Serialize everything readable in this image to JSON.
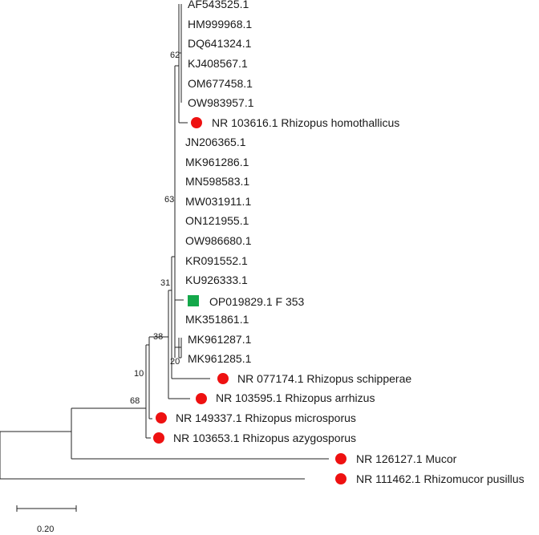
{
  "tree": {
    "taxa": [
      {
        "label": "AF543525.1",
        "marker": "none"
      },
      {
        "label": "HM999968.1",
        "marker": "none"
      },
      {
        "label": "DQ641324.1",
        "marker": "none"
      },
      {
        "label": "KJ408567.1",
        "marker": "none"
      },
      {
        "label": "OM677458.1",
        "marker": "none"
      },
      {
        "label": "OW983957.1",
        "marker": "none"
      },
      {
        "label": "NR 103616.1 Rhizopus homothallicus",
        "marker": "circle"
      },
      {
        "label": "JN206365.1",
        "marker": "none"
      },
      {
        "label": "MK961286.1",
        "marker": "none"
      },
      {
        "label": "MN598583.1",
        "marker": "none"
      },
      {
        "label": "MW031911.1",
        "marker": "none"
      },
      {
        "label": "ON121955.1",
        "marker": "none"
      },
      {
        "label": "OW986680.1",
        "marker": "none"
      },
      {
        "label": "KR091552.1",
        "marker": "none"
      },
      {
        "label": "KU926333.1",
        "marker": "none"
      },
      {
        "label": "OP019829.1 F 353",
        "marker": "square"
      },
      {
        "label": "MK351861.1",
        "marker": "none"
      },
      {
        "label": "MK961287.1",
        "marker": "none"
      },
      {
        "label": "MK961285.1",
        "marker": "none"
      },
      {
        "label": "NR 077174.1 Rhizopus schipperae",
        "marker": "circle"
      },
      {
        "label": "NR 103595.1 Rhizopus arrhizus",
        "marker": "circle"
      },
      {
        "label": "NR 149337.1 Rhizopus microsporus",
        "marker": "circle"
      },
      {
        "label": "NR 103653.1 Rhizopus azygosporus",
        "marker": "circle"
      },
      {
        "label": "NR 126127.1 Mucor",
        "marker": "circle"
      },
      {
        "label": "NR 111462.1 Rhizomucor pusillus",
        "marker": "circle"
      }
    ],
    "bootstrap": {
      "node_62": "62",
      "node_63": "63",
      "node_31": "31",
      "node_38": "38",
      "node_10": "10",
      "node_68": "68",
      "node_20": "20"
    },
    "scale_bar": {
      "label": "0.20"
    },
    "colors": {
      "circle": "#ee1111",
      "square": "#13a84a",
      "line": "#222222"
    }
  }
}
